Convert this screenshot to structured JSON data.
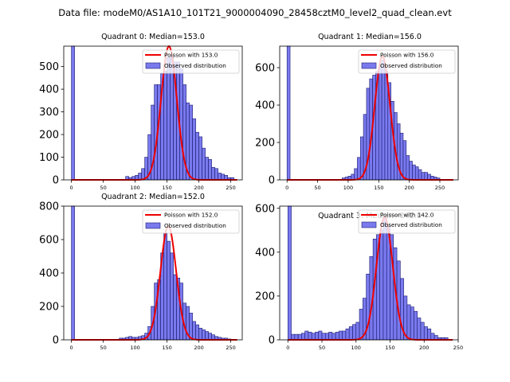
{
  "figure": {
    "suptitle": "Data file: modeM0/AS1A10_101T21_9000004090_28458cztM0_level2_quad_clean.evt"
  },
  "colors": {
    "bar_fill": "#7a7aee",
    "bar_edge": "#1a1a70",
    "line": "#ee0000",
    "axis": "#000000"
  },
  "chart_data": [
    {
      "type": "bar",
      "title": "Quadrant 0: Median=153.0",
      "legend": [
        "Poisson with 153.0",
        "Observed distribution"
      ],
      "legend_position": "top-right",
      "xlim": [
        -12,
        268
      ],
      "ylim": [
        0,
        590
      ],
      "xticks": [
        0,
        50,
        100,
        150,
        200,
        250
      ],
      "yticks": [
        0,
        100,
        200,
        300,
        400,
        500
      ],
      "bin_width": 5,
      "bins": [
        [
          0,
          590
        ],
        [
          85,
          15
        ],
        [
          90,
          10
        ],
        [
          95,
          15
        ],
        [
          100,
          20
        ],
        [
          105,
          30
        ],
        [
          110,
          50
        ],
        [
          115,
          100
        ],
        [
          120,
          200
        ],
        [
          125,
          330
        ],
        [
          130,
          420
        ],
        [
          135,
          420
        ],
        [
          140,
          470
        ],
        [
          145,
          480
        ],
        [
          150,
          540
        ],
        [
          155,
          550
        ],
        [
          160,
          520
        ],
        [
          165,
          520
        ],
        [
          170,
          490
        ],
        [
          175,
          420
        ],
        [
          180,
          340
        ],
        [
          185,
          330
        ],
        [
          190,
          270
        ],
        [
          195,
          210
        ],
        [
          200,
          190
        ],
        [
          205,
          140
        ],
        [
          210,
          100
        ],
        [
          215,
          90
        ],
        [
          220,
          55
        ],
        [
          225,
          50
        ],
        [
          230,
          30
        ],
        [
          235,
          25
        ],
        [
          240,
          20
        ],
        [
          245,
          10
        ],
        [
          250,
          10
        ]
      ],
      "poisson_mean": 153.0,
      "poisson_peak": 590
    },
    {
      "type": "bar",
      "title": "Quadrant 1: Median=156.0",
      "legend": [
        "Poisson with 156.0",
        "Observed distribution"
      ],
      "legend_position": "top-right",
      "xlim": [
        -12,
        280
      ],
      "ylim": [
        0,
        715
      ],
      "xticks": [
        0,
        50,
        100,
        150,
        200,
        250
      ],
      "yticks": [
        0,
        200,
        400,
        600
      ],
      "bin_width": 5,
      "bins": [
        [
          0,
          715
        ],
        [
          90,
          10
        ],
        [
          95,
          15
        ],
        [
          100,
          20
        ],
        [
          105,
          30
        ],
        [
          110,
          60
        ],
        [
          115,
          120
        ],
        [
          120,
          230
        ],
        [
          125,
          350
        ],
        [
          130,
          490
        ],
        [
          135,
          540
        ],
        [
          140,
          560
        ],
        [
          145,
          580
        ],
        [
          150,
          610
        ],
        [
          155,
          640
        ],
        [
          160,
          580
        ],
        [
          165,
          520
        ],
        [
          170,
          420
        ],
        [
          175,
          360
        ],
        [
          180,
          300
        ],
        [
          185,
          250
        ],
        [
          190,
          210
        ],
        [
          195,
          130
        ],
        [
          200,
          100
        ],
        [
          205,
          80
        ],
        [
          210,
          70
        ],
        [
          215,
          55
        ],
        [
          220,
          40
        ],
        [
          225,
          40
        ],
        [
          230,
          30
        ],
        [
          235,
          20
        ],
        [
          240,
          15
        ],
        [
          245,
          10
        ]
      ],
      "poisson_mean": 156.0,
      "poisson_peak": 660
    },
    {
      "type": "bar",
      "title": "Quadrant 2: Median=152.0",
      "legend": [
        "Poisson with 152.0",
        "Observed distribution"
      ],
      "legend_position": "top-right",
      "xlim": [
        -12,
        268
      ],
      "ylim": [
        0,
        800
      ],
      "xticks": [
        0,
        50,
        100,
        150,
        200,
        250
      ],
      "yticks": [
        0,
        200,
        400,
        600,
        800
      ],
      "bin_width": 5,
      "bins": [
        [
          0,
          800
        ],
        [
          75,
          10
        ],
        [
          80,
          10
        ],
        [
          85,
          15
        ],
        [
          90,
          20
        ],
        [
          95,
          15
        ],
        [
          100,
          15
        ],
        [
          105,
          20
        ],
        [
          110,
          25
        ],
        [
          115,
          40
        ],
        [
          120,
          80
        ],
        [
          125,
          200
        ],
        [
          130,
          340
        ],
        [
          135,
          360
        ],
        [
          140,
          520
        ],
        [
          145,
          640
        ],
        [
          150,
          590
        ],
        [
          155,
          520
        ],
        [
          160,
          390
        ],
        [
          165,
          370
        ],
        [
          170,
          340
        ],
        [
          175,
          220
        ],
        [
          180,
          200
        ],
        [
          185,
          160
        ],
        [
          190,
          110
        ],
        [
          195,
          90
        ],
        [
          200,
          70
        ],
        [
          205,
          60
        ],
        [
          210,
          50
        ],
        [
          215,
          40
        ],
        [
          220,
          30
        ],
        [
          225,
          20
        ],
        [
          230,
          15
        ],
        [
          235,
          10
        ],
        [
          240,
          10
        ],
        [
          245,
          5
        ]
      ],
      "poisson_mean": 152.0,
      "poisson_peak": 680
    },
    {
      "type": "bar",
      "title": "Quadrant 3: Median=142.0",
      "legend": [
        "Poisson with 142.0",
        "Observed distribution"
      ],
      "legend_position": "top-right",
      "xlim": [
        -12,
        250
      ],
      "ylim": [
        0,
        610
      ],
      "xticks": [
        0,
        50,
        100,
        150,
        200,
        250
      ],
      "yticks": [
        0,
        200,
        400,
        600
      ],
      "bin_width": 5,
      "bins": [
        [
          0,
          610
        ],
        [
          5,
          25
        ],
        [
          10,
          25
        ],
        [
          15,
          25
        ],
        [
          20,
          30
        ],
        [
          25,
          40
        ],
        [
          30,
          35
        ],
        [
          35,
          30
        ],
        [
          40,
          35
        ],
        [
          45,
          40
        ],
        [
          50,
          30
        ],
        [
          55,
          30
        ],
        [
          60,
          35
        ],
        [
          65,
          30
        ],
        [
          70,
          35
        ],
        [
          75,
          40
        ],
        [
          80,
          40
        ],
        [
          85,
          50
        ],
        [
          90,
          60
        ],
        [
          95,
          70
        ],
        [
          100,
          80
        ],
        [
          105,
          140
        ],
        [
          110,
          190
        ],
        [
          115,
          300
        ],
        [
          120,
          380
        ],
        [
          125,
          460
        ],
        [
          130,
          480
        ],
        [
          135,
          500
        ],
        [
          140,
          560
        ],
        [
          145,
          520
        ],
        [
          150,
          480
        ],
        [
          155,
          420
        ],
        [
          160,
          360
        ],
        [
          165,
          280
        ],
        [
          170,
          200
        ],
        [
          175,
          160
        ],
        [
          180,
          150
        ],
        [
          185,
          130
        ],
        [
          190,
          100
        ],
        [
          195,
          80
        ],
        [
          200,
          60
        ],
        [
          205,
          50
        ],
        [
          210,
          30
        ],
        [
          215,
          20
        ],
        [
          220,
          10
        ],
        [
          225,
          10
        ],
        [
          230,
          10
        ]
      ],
      "poisson_mean": 142.0,
      "poisson_peak": 560
    }
  ]
}
